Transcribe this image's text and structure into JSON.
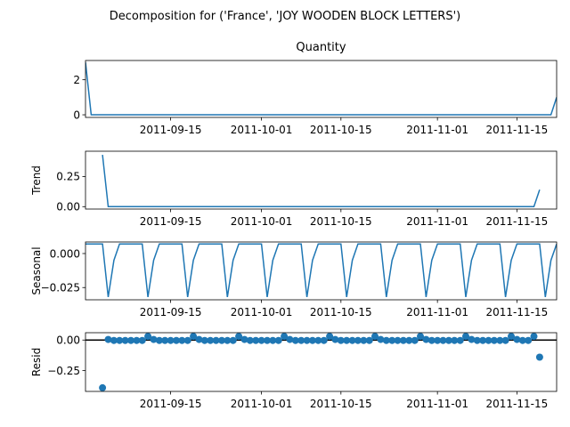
{
  "suptitle": "Decomposition for ('France', 'JOY WOODEN BLOCK LETTERS')",
  "x_ticks": [
    "2011-09-15",
    "2011-10-01",
    "2011-10-15",
    "2011-11-01",
    "2011-11-15"
  ],
  "x_tick_days": [
    14,
    30,
    44,
    61,
    75
  ],
  "x_range_days": [
    -1,
    82
  ],
  "x_origin_date": "2011-09-01",
  "line_color": "#1f77b4",
  "chart_data": [
    {
      "type": "line",
      "title": "Quantity",
      "ylabel": "",
      "ylim": [
        -0.15,
        3.1
      ],
      "yticks": [
        0,
        2
      ],
      "x": [
        -1,
        0,
        81,
        82
      ],
      "values": [
        3.0,
        0.0,
        0.0,
        1.0
      ]
    },
    {
      "type": "line",
      "title": "",
      "ylabel": "Trend",
      "ylim": [
        -0.02,
        0.46
      ],
      "yticks": [
        0.0,
        0.25
      ],
      "ytick_labels": [
        "0.00",
        "0.25"
      ],
      "x": [
        2,
        3,
        78,
        79
      ],
      "values": [
        0.43,
        0.0,
        0.0,
        0.14
      ]
    },
    {
      "type": "line",
      "title": "",
      "ylabel": "Seasonal",
      "ylim": [
        -0.034,
        0.0085
      ],
      "yticks": [
        0.0,
        -0.025
      ],
      "ytick_labels": [
        "0.000",
        "−0.025"
      ],
      "period": 7,
      "pattern": [
        0.007,
        0.007,
        0.007,
        0.007,
        -0.032,
        -0.005,
        0.007
      ],
      "x_start": -1,
      "x_end": 82
    },
    {
      "type": "scatter",
      "title": "",
      "ylabel": "Resid",
      "ylim": [
        -0.42,
        0.06
      ],
      "yticks": [
        0.0,
        -0.25
      ],
      "ytick_labels": [
        "0.00",
        "−0.25"
      ],
      "baseline": 0,
      "x": [
        2,
        3,
        4,
        5,
        6,
        7,
        8,
        9,
        10,
        11,
        12,
        13,
        14,
        15,
        16,
        17,
        18,
        19,
        20,
        21,
        22,
        23,
        24,
        25,
        26,
        27,
        28,
        29,
        30,
        31,
        32,
        33,
        34,
        35,
        36,
        37,
        38,
        39,
        40,
        41,
        42,
        43,
        44,
        45,
        46,
        47,
        48,
        49,
        50,
        51,
        52,
        53,
        54,
        55,
        56,
        57,
        58,
        59,
        60,
        61,
        62,
        63,
        64,
        65,
        66,
        67,
        68,
        69,
        70,
        71,
        72,
        73,
        74,
        75,
        76,
        77,
        78,
        79
      ],
      "values": [
        -0.39,
        0.005,
        -0.003,
        -0.003,
        -0.003,
        -0.003,
        -0.003,
        -0.003,
        0.03,
        0.005,
        -0.003,
        -0.003,
        -0.003,
        -0.003,
        -0.003,
        -0.003,
        0.03,
        0.005,
        -0.003,
        -0.003,
        -0.003,
        -0.003,
        -0.003,
        -0.003,
        0.03,
        0.005,
        -0.003,
        -0.003,
        -0.003,
        -0.003,
        -0.003,
        -0.003,
        0.03,
        0.005,
        -0.003,
        -0.003,
        -0.003,
        -0.003,
        -0.003,
        -0.003,
        0.03,
        0.005,
        -0.003,
        -0.003,
        -0.003,
        -0.003,
        -0.003,
        -0.003,
        0.03,
        0.005,
        -0.003,
        -0.003,
        -0.003,
        -0.003,
        -0.003,
        -0.003,
        0.03,
        0.005,
        -0.003,
        -0.003,
        -0.003,
        -0.003,
        -0.003,
        -0.003,
        0.03,
        0.005,
        -0.003,
        -0.003,
        -0.003,
        -0.003,
        -0.003,
        -0.003,
        0.03,
        0.005,
        -0.003,
        -0.003,
        0.03,
        -0.14
      ]
    }
  ]
}
